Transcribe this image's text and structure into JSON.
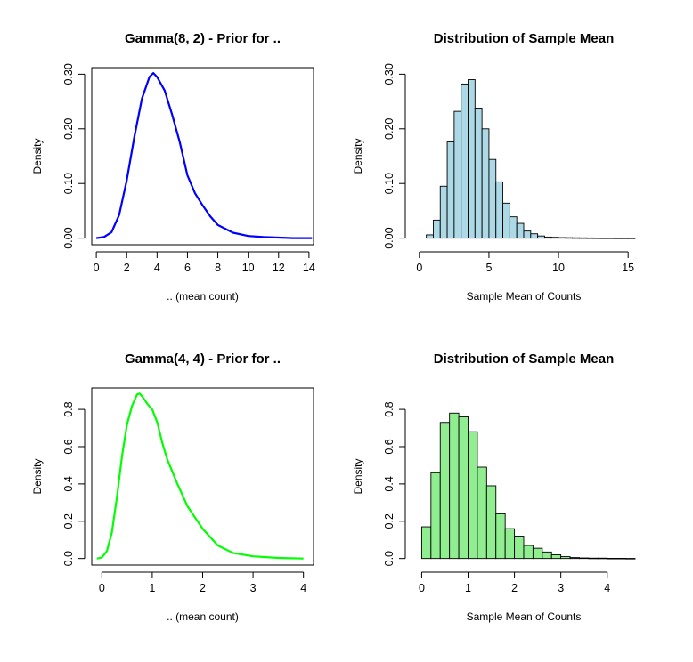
{
  "chart_data": [
    {
      "type": "line",
      "title": "Gamma(8, 2) - Prior for ..",
      "xlabel": ".. (mean count)",
      "ylabel": "Density",
      "xlim": [
        -0.3,
        14.3
      ],
      "ylim": [
        -0.012,
        0.312
      ],
      "xticks": [
        0,
        2,
        4,
        6,
        8,
        10,
        12,
        14
      ],
      "yticks": [
        "0.00",
        "0.10",
        "0.20",
        "0.30"
      ],
      "grid": false,
      "series": [
        {
          "color": "#0000ff",
          "x": [
            0,
            0.5,
            1,
            1.5,
            2,
            2.5,
            3,
            3.5,
            3.75,
            4,
            4.5,
            5,
            5.5,
            6,
            6.5,
            7,
            7.5,
            8,
            9,
            10,
            11,
            12,
            13,
            14.2
          ],
          "y": [
            0.0,
            0.002,
            0.011,
            0.042,
            0.105,
            0.185,
            0.255,
            0.295,
            0.302,
            0.295,
            0.27,
            0.225,
            0.175,
            0.115,
            0.082,
            0.06,
            0.04,
            0.024,
            0.01,
            0.004,
            0.002,
            0.001,
            0.0,
            0.0
          ]
        }
      ]
    },
    {
      "type": "bar",
      "title": "Distribution of Sample Mean",
      "xlabel": "Sample Mean of Counts",
      "ylabel": "Density",
      "xlim": [
        -0.5,
        15.5
      ],
      "ylim": [
        -0.012,
        0.312
      ],
      "xticks": [
        0,
        5,
        10,
        15
      ],
      "yticks": [
        "0.00",
        "0.10",
        "0.20",
        "0.30"
      ],
      "fill": "#add8e6",
      "bin_width": 0.5,
      "bin_start": 0.5,
      "values": [
        0.006,
        0.033,
        0.095,
        0.176,
        0.232,
        0.282,
        0.29,
        0.238,
        0.2,
        0.144,
        0.103,
        0.064,
        0.039,
        0.027,
        0.013,
        0.008,
        0.004,
        0.002,
        0.0015,
        0.001,
        0.0008,
        0.0006,
        0.0005,
        0.0004,
        0.0003,
        0.0002,
        0.0002,
        0.0001,
        0.0001,
        0.0001
      ]
    },
    {
      "type": "line",
      "title": "Gamma(4, 4) - Prior for ..",
      "xlabel": ".. (mean count)",
      "ylabel": "Density",
      "xlim": [
        -0.2,
        4.2
      ],
      "ylim": [
        -0.035,
        0.915
      ],
      "xticks": [
        0,
        1,
        2,
        3,
        4
      ],
      "yticks": [
        "0.0",
        "0.2",
        "0.4",
        "0.6",
        "0.8"
      ],
      "grid": false,
      "series": [
        {
          "color": "#00ff00",
          "x": [
            -0.1,
            0.0,
            0.1,
            0.2,
            0.3,
            0.4,
            0.5,
            0.6,
            0.7,
            0.75,
            0.8,
            0.9,
            1.0,
            1.1,
            1.2,
            1.3,
            1.5,
            1.7,
            2.0,
            2.3,
            2.6,
            3.0,
            3.5,
            4.0
          ],
          "y": [
            0.0,
            0.005,
            0.04,
            0.14,
            0.33,
            0.55,
            0.72,
            0.82,
            0.88,
            0.885,
            0.87,
            0.83,
            0.8,
            0.73,
            0.62,
            0.53,
            0.4,
            0.28,
            0.16,
            0.07,
            0.03,
            0.012,
            0.003,
            0.0
          ]
        }
      ]
    },
    {
      "type": "bar",
      "title": "Distribution of Sample Mean",
      "xlabel": "Sample Mean of Counts",
      "ylabel": "Density",
      "xlim": [
        -0.2,
        4.6
      ],
      "ylim": [
        -0.035,
        0.915
      ],
      "xticks": [
        0,
        1,
        2,
        3,
        4
      ],
      "yticks": [
        "0.0",
        "0.2",
        "0.4",
        "0.6",
        "0.8"
      ],
      "fill": "#90ee90",
      "bin_width": 0.2,
      "bin_start": 0,
      "values": [
        0.17,
        0.46,
        0.73,
        0.78,
        0.76,
        0.68,
        0.49,
        0.39,
        0.24,
        0.16,
        0.12,
        0.07,
        0.055,
        0.035,
        0.02,
        0.01,
        0.005,
        0.003,
        0.002,
        0.002,
        0.001,
        0.001,
        0.0005
      ]
    }
  ]
}
